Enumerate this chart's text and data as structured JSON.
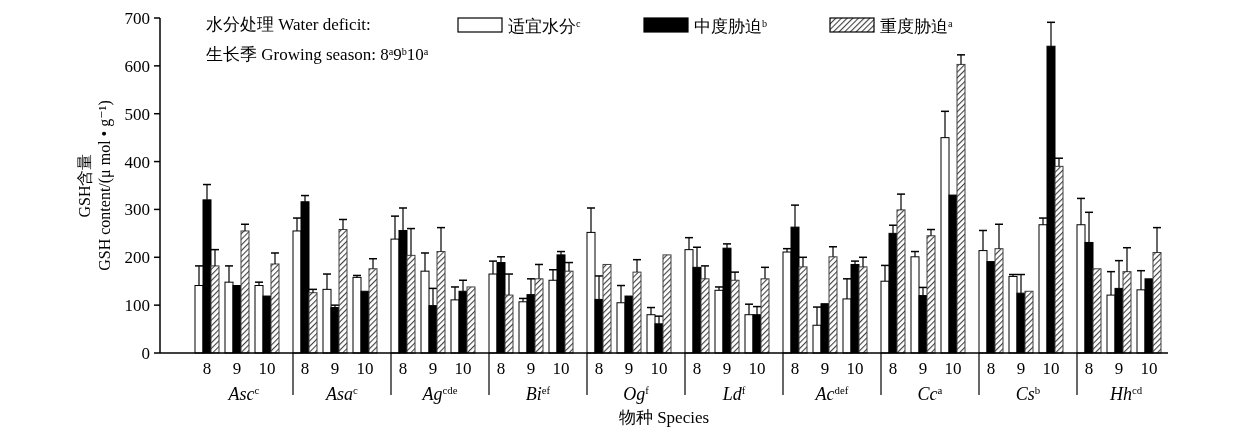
{
  "chart_data": {
    "type": "bar",
    "xlabel": "物种 Species",
    "ylabel": "GSH含量\nGSH content/(μ mol • g⁻¹)",
    "legend_title": "水分处理 Water deficit:",
    "legend": "top",
    "grid": false,
    "categories": [
      "8",
      "9",
      "10",
      "8",
      "9",
      "10",
      "8",
      "9",
      "10",
      "8",
      "9",
      "10",
      "8",
      "9",
      "10",
      "8",
      "9",
      "10",
      "8",
      "9",
      "10",
      "8",
      "9",
      "10",
      "8",
      "9",
      "10",
      "8",
      "9",
      "10"
    ],
    "ylim": [
      0,
      700
    ],
    "yticks": [
      0,
      100,
      200,
      300,
      400,
      500,
      600,
      700
    ],
    "annotations": [
      "生长季 Growing season: 8$^{a}$9$^{b}$10$^{a}$",
      "Asc$^{c}$",
      "Asa$^{c}$",
      "Ag$^{cde}$",
      "Bi$^{ef}$",
      "Og$^{f}$",
      "Ld$^{f}$",
      "Ac$^{def}$",
      "Cc$^{a}$",
      "Cs$^{b}$",
      "Hh$^{cd}$"
    ],
    "series": [
      {
        "name": "适宜水分$^{c}$",
        "color": "#ffffff",
        "values": [
          141,
          148,
          141,
          255,
          133,
          158,
          238,
          171,
          111,
          165,
          107,
          152,
          252,
          105,
          80,
          216,
          131,
          80,
          211,
          58,
          113,
          150,
          201,
          450,
          214,
          160,
          268,
          268,
          121,
          132
        ],
        "errors": [
          41,
          34,
          7,
          27,
          32,
          4,
          48,
          38,
          27,
          27,
          7,
          22,
          51,
          36,
          15,
          25,
          7,
          22,
          7,
          38,
          42,
          33,
          11,
          55,
          42,
          4,
          14,
          55,
          49,
          40
        ]
      },
      {
        "name": "中度胁迫$^{b}$",
        "color": "#000000",
        "values": [
          320,
          141,
          119,
          316,
          95,
          129,
          256,
          99,
          129,
          189,
          122,
          205,
          112,
          119,
          61,
          179,
          219,
          80,
          263,
          103,
          185,
          250,
          120,
          330,
          191,
          125,
          641,
          231,
          135,
          155
        ],
        "errors": [
          32,
          null,
          null,
          13,
          5,
          null,
          47,
          36,
          23,
          12,
          33,
          7,
          49,
          null,
          16,
          42,
          9,
          17,
          46,
          null,
          7,
          17,
          17,
          null,
          null,
          39,
          50,
          63,
          58,
          null
        ]
      },
      {
        "name": "重度胁迫$^{a}$",
        "color": "#404040",
        "values": [
          182,
          255,
          186,
          126,
          258,
          176,
          204,
          212,
          138,
          121,
          155,
          171,
          185,
          169,
          205,
          155,
          152,
          155,
          180,
          201,
          180,
          299,
          245,
          603,
          218,
          129,
          390,
          176,
          170,
          210
        ],
        "errors": [
          34,
          14,
          23,
          7,
          21,
          21,
          56,
          50,
          null,
          44,
          30,
          18,
          null,
          26,
          null,
          27,
          17,
          24,
          20,
          21,
          20,
          33,
          13,
          20,
          51,
          null,
          17,
          null,
          50,
          52
        ]
      }
    ]
  }
}
